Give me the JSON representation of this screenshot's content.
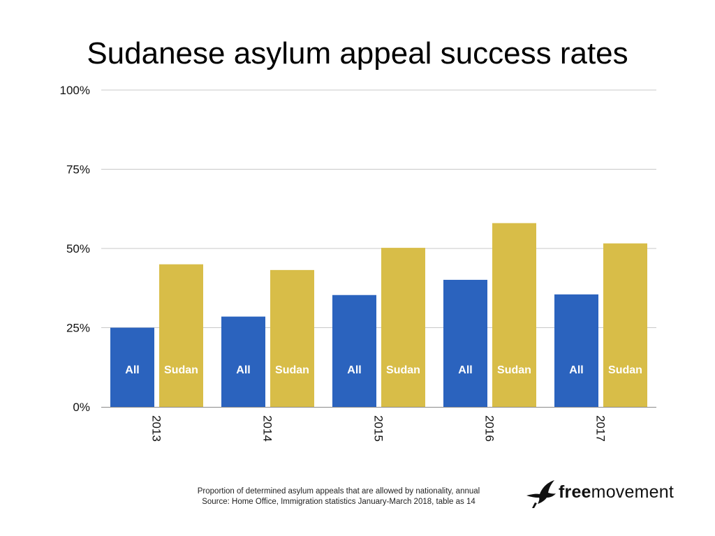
{
  "chart_data": {
    "type": "bar",
    "title": "Sudanese asylum appeal success rates",
    "categories": [
      "2013",
      "2014",
      "2015",
      "2016",
      "2017"
    ],
    "series": [
      {
        "name": "All",
        "values": [
          25,
          28.5,
          35.3,
          40.1,
          35.5
        ],
        "color": "#2b63be"
      },
      {
        "name": "Sudan",
        "values": [
          45,
          43.2,
          50.2,
          58,
          51.6
        ],
        "color": "#d8bd48"
      }
    ],
    "ylim": [
      0,
      100
    ],
    "yticks": [
      "0%",
      "25%",
      "50%",
      "75%",
      "100%"
    ],
    "ytick_values": [
      0,
      25,
      50,
      75,
      100
    ],
    "grid": true,
    "legend": "inside-bars"
  },
  "caption": {
    "line1": "Proportion of determined asylum appeals that are allowed by nationality, annual",
    "line2": "Source: Home Office, Immigration statistics January-March 2018, table as 14"
  },
  "logo": {
    "bold": "free",
    "regular": "movement"
  },
  "colors": {
    "grid": "#c8c8c8",
    "axis": "#8a8a8a",
    "bar_label": "#ffffff"
  }
}
